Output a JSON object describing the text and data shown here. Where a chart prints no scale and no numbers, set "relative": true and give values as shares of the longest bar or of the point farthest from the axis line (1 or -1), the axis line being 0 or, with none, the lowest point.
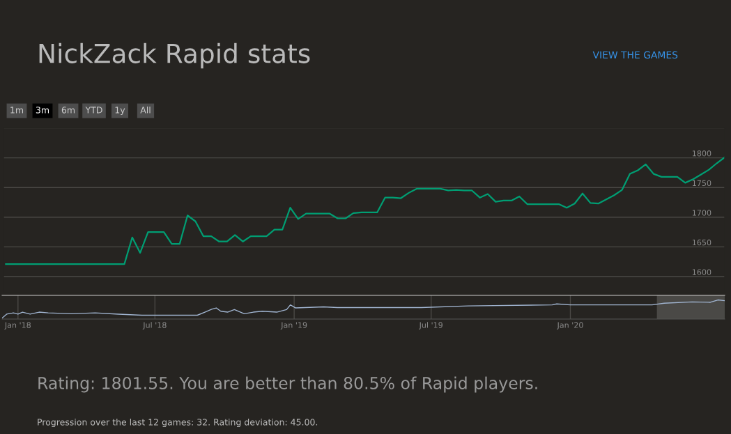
{
  "chart_data": [
    {
      "type": "line",
      "title": "NickZack Rapid stats",
      "categories": [
        null,
        null,
        null,
        null,
        null,
        null,
        null,
        null,
        null,
        null,
        null,
        null,
        null,
        null,
        null,
        null,
        null,
        null,
        null,
        null,
        null,
        null,
        null,
        null,
        null,
        null,
        null,
        null,
        null,
        null,
        null,
        null,
        null,
        null,
        null,
        null,
        null,
        null,
        null,
        null,
        null,
        null,
        null,
        null,
        null,
        null,
        null,
        null,
        null,
        null,
        null,
        null,
        null,
        null,
        null,
        null,
        null,
        null,
        null,
        null,
        null,
        null,
        null,
        null,
        null,
        null,
        null,
        null,
        null,
        null,
        null,
        null,
        null,
        null,
        null,
        null,
        null,
        null,
        null,
        null,
        null,
        null,
        null,
        null,
        null,
        null,
        null,
        null,
        null,
        null,
        null,
        null
      ],
      "series": [
        {
          "color": "#009e73",
          "values": [
            1621,
            1621,
            1621,
            1621,
            1621,
            1621,
            1621,
            1621,
            1621,
            1621,
            1621,
            1621,
            1621,
            1621,
            1621,
            1621,
            1666,
            1640,
            1675,
            1675,
            1675,
            1655,
            1655,
            1703,
            1693,
            1668,
            1668,
            1659,
            1659,
            1670,
            1659,
            1668,
            1668,
            1668,
            1679,
            1679,
            1716,
            1697,
            1706,
            1706,
            1706,
            1706,
            1698,
            1698,
            1707,
            1708,
            1708,
            1708,
            1733,
            1733,
            1732,
            1741,
            1748,
            1748,
            1748,
            1748,
            1745,
            1746,
            1745,
            1745,
            1733,
            1739,
            1726,
            1728,
            1728,
            1735,
            1722,
            1722,
            1722,
            1722,
            1722,
            1716,
            1723,
            1740,
            1724,
            1723,
            1730,
            1737,
            1746,
            1773,
            1779,
            1789,
            1773,
            1768,
            1768,
            1768,
            1758,
            1764,
            1772,
            1780,
            1791,
            1801
          ]
        }
      ],
      "ylim": [
        1573,
        1850
      ],
      "yticks": [
        1600,
        1650,
        1700,
        1750,
        1800,
        {
          "value": 1850,
          "label": null
        }
      ],
      "grid": "y",
      "tick_labels": "y",
      "marker": "none",
      "line_style": "solid",
      "annotations": [
        "1m",
        "3m",
        "6m",
        "YTD",
        "1y",
        "All",
        "VIEW THE GAMES",
        "Rating: 1801.55. You are better than 80.5% of Rapid players.",
        "Progression over the last 12 games: 32. Rating deviation: 45.00."
      ]
    },
    {
      "type": "line",
      "relative": true,
      "series": [
        {
          "color": "#a0b4d0",
          "x": [
            "2017-12-11",
            "2017-12-17",
            "2017-12-26",
            "2018-01-01",
            "2018-01-07",
            "2018-01-17",
            "2018-01-29",
            "2018-02-10",
            "2018-03-13",
            "2018-04-13",
            "2018-05-14",
            "2018-06-14",
            "2018-07-02",
            "2018-08-26",
            "2018-09-05",
            "2018-09-14",
            "2018-09-20",
            "2018-09-26",
            "2018-10-05",
            "2018-10-14",
            "2018-10-27",
            "2018-11-08",
            "2018-11-20",
            "2018-12-09",
            "2018-12-22",
            "2018-12-27",
            "2019-01-03",
            "2019-02-09",
            "2019-02-27",
            "2019-06-18",
            "2019-08-19",
            "2019-12-08",
            "2019-12-14",
            "2020-01-01",
            "2020-04-18",
            "2020-05-04",
            "2020-06-10",
            "2020-07-04",
            "2020-07-14",
            "2020-07-23"
          ],
          "values": [
            0,
            0.22,
            0.29,
            0.22,
            0.33,
            0.22,
            0.33,
            0.29,
            0.24,
            0.29,
            0.22,
            0.16,
            0.16,
            0.16,
            0.33,
            0.49,
            0.56,
            0.38,
            0.33,
            0.47,
            0.24,
            0.33,
            0.38,
            0.33,
            0.47,
            0.73,
            0.56,
            0.62,
            0.58,
            0.58,
            0.67,
            0.73,
            0.78,
            0.73,
            0.73,
            0.82,
            0.89,
            0.87,
            1,
            0.96
          ]
        }
      ],
      "xlim": [
        "2017-12-11",
        "2020-07-23"
      ],
      "xticks": [
        {
          "value": "2018-01-01",
          "label": "Jan '18"
        },
        {
          "value": "2018-07-01",
          "label": "Jul '18"
        },
        {
          "value": "2019-01-01",
          "label": "Jan '19"
        },
        {
          "value": "2019-07-01",
          "label": "Jul '19"
        },
        {
          "value": "2020-01-01",
          "label": "Jan '20"
        }
      ],
      "bands": [
        {
          "axis": "x",
          "from": "2020-04-25",
          "to": "2020-07-23",
          "label": null,
          "color": "#4a4946"
        }
      ],
      "grid": "x",
      "tick_labels": "x"
    }
  ]
}
